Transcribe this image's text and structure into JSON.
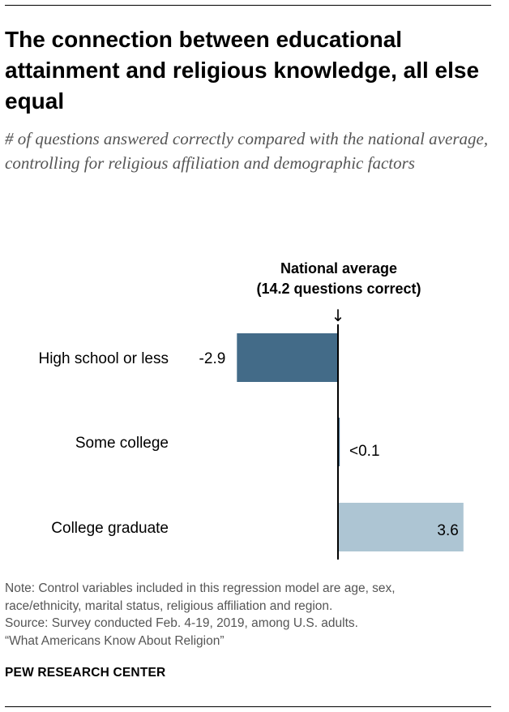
{
  "header": {
    "title": "The connection between educational attainment and religious knowledge, all else equal",
    "subtitle": "# of questions answered correctly compared with the national average, controlling for religious affiliation and demographic factors"
  },
  "reference": {
    "line1": "National average",
    "line2": "(14.2 questions correct)",
    "arrow": "↓"
  },
  "chart_data": {
    "type": "bar",
    "orientation": "horizontal",
    "baseline": 0,
    "categories": [
      "High school or less",
      "Some college",
      "College graduate"
    ],
    "values": [
      -2.9,
      0.05,
      3.6
    ],
    "value_labels": [
      "-2.9",
      "<0.1",
      "3.6"
    ],
    "colors": [
      "#436b88",
      "#436b88",
      "#adc5d3"
    ],
    "xlim": [
      -4.5,
      4.5
    ],
    "grid": false,
    "legend": "none"
  },
  "footer": {
    "note_lines": [
      "Note: Control variables included in this regression model are age, sex,",
      "race/ethnicity, marital status, religious affiliation and region.",
      "Source: Survey conducted Feb. 4-19, 2019, among U.S. adults.",
      "“What Americans Know About Religion”"
    ],
    "brand": "PEW RESEARCH CENTER"
  }
}
